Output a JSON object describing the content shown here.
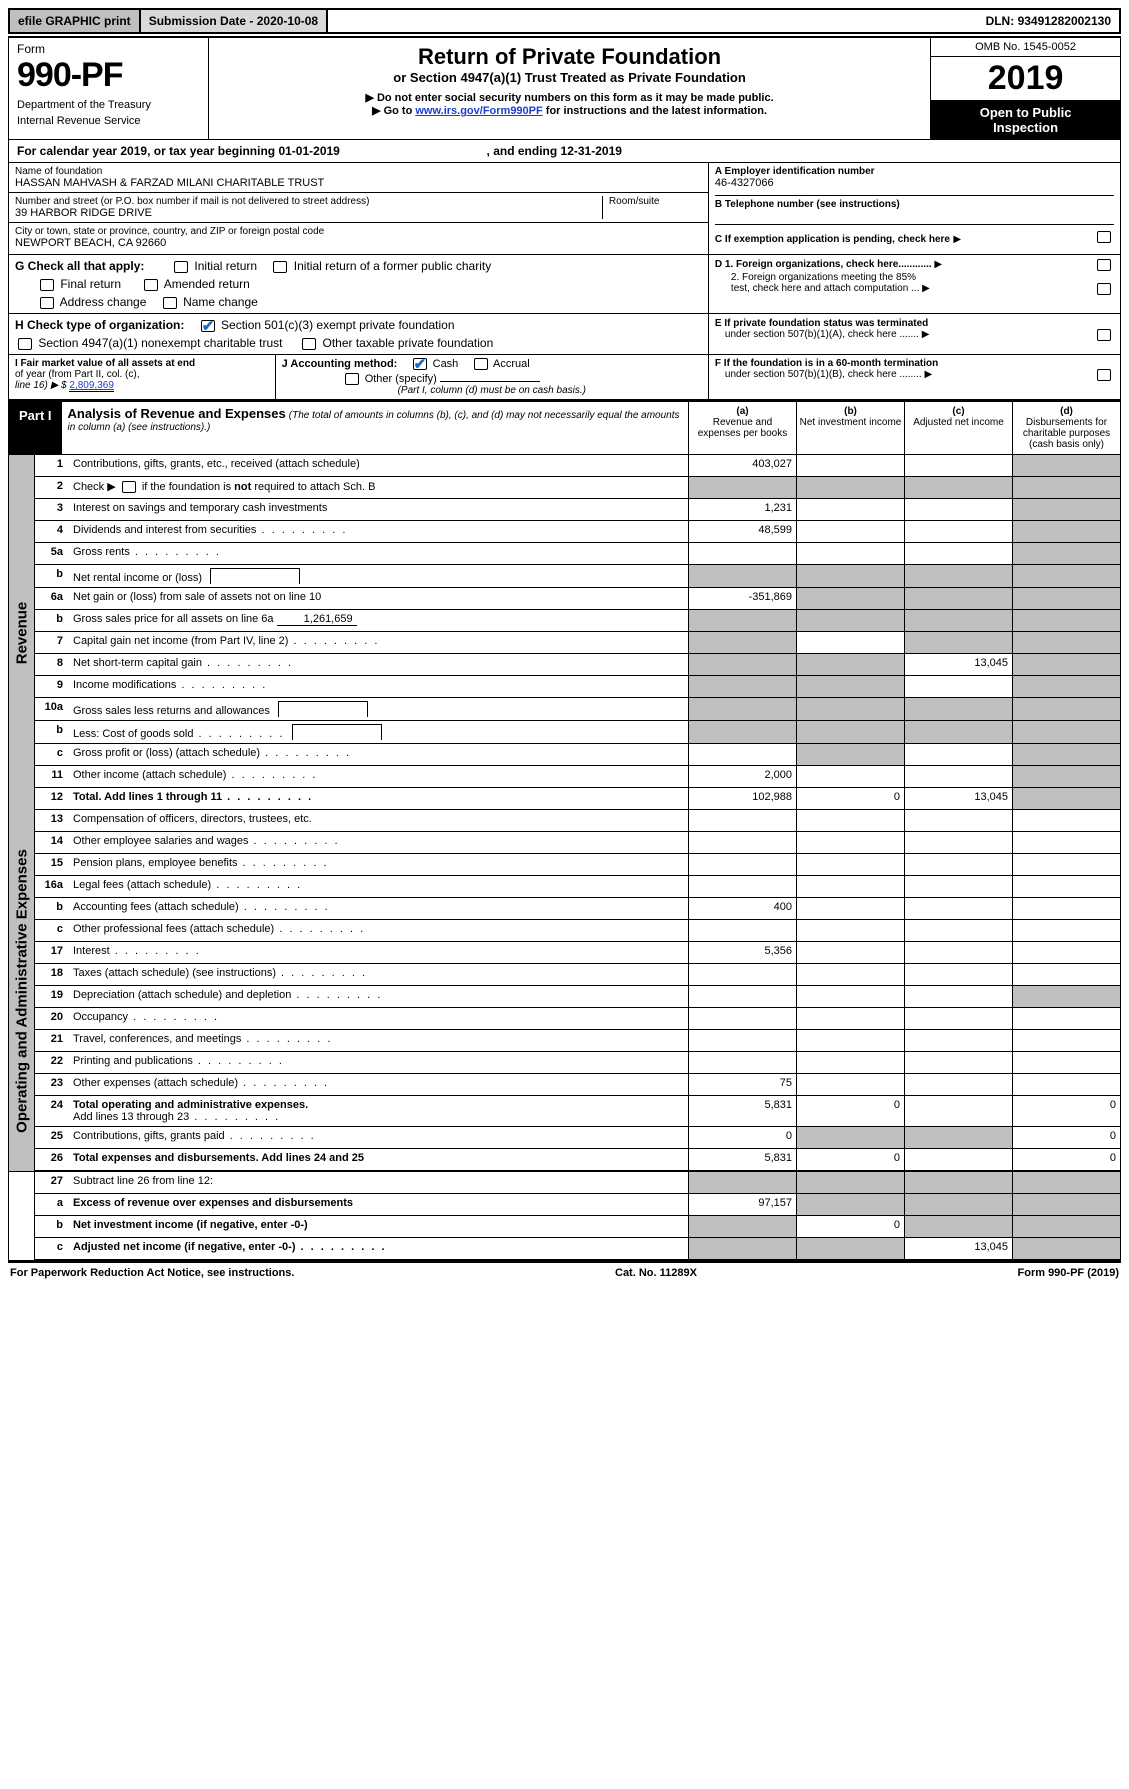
{
  "topbar": {
    "efile": "efile GRAPHIC print",
    "subdate_label": "Submission Date - ",
    "subdate": "2020-10-08",
    "dln_label": "DLN: ",
    "dln": "93491282002130"
  },
  "header": {
    "form_label": "Form",
    "form_no": "990-PF",
    "dept1": "Department of the Treasury",
    "dept2": "Internal Revenue Service",
    "title": "Return of Private Foundation",
    "subtitle": "or Section 4947(a)(1) Trust Treated as Private Foundation",
    "note1_pre": "▶ Do not enter social security numbers on this form as it may be made public.",
    "note2_pre": "▶ Go to ",
    "note2_link": "www.irs.gov/Form990PF",
    "note2_post": " for instructions and the latest information.",
    "omb": "OMB No. 1545-0052",
    "year": "2019",
    "inspect1": "Open to Public",
    "inspect2": "Inspection"
  },
  "cal": {
    "prefix": "For calendar year 2019, or tax year beginning ",
    "begin": "01-01-2019",
    "mid": ", and ending ",
    "end": "12-31-2019"
  },
  "entity": {
    "name_label": "Name of foundation",
    "name": "HASSAN MAHVASH & FARZAD MILANI CHARITABLE TRUST",
    "addr_label": "Number and street (or P.O. box number if mail is not delivered to street address)",
    "room_label": "Room/suite",
    "addr": "39 HARBOR RIDGE DRIVE",
    "city_label": "City or town, state or province, country, and ZIP or foreign postal code",
    "city": "NEWPORT BEACH, CA  92660",
    "a_label": "A Employer identification number",
    "ein": "46-4327066",
    "b_label": "B Telephone number (see instructions)",
    "c_label": "C If exemption application is pending, check here",
    "d1": "D 1. Foreign organizations, check here............",
    "d2a": "2. Foreign organizations meeting the 85%",
    "d2b": "test, check here and attach computation ...",
    "e1": "E  If private foundation status was terminated",
    "e2": "under section 507(b)(1)(A), check here .......",
    "f1": "F  If the foundation is in a 60-month termination",
    "f2": "under section 507(b)(1)(B), check here ........"
  },
  "g": {
    "label": "G Check all that apply:",
    "opts": [
      "Initial return",
      "Initial return of a former public charity",
      "Final return",
      "Amended return",
      "Address change",
      "Name change"
    ]
  },
  "h": {
    "label": "H Check type of organization:",
    "opt1": "Section 501(c)(3) exempt private foundation",
    "opt2": "Section 4947(a)(1) nonexempt charitable trust",
    "opt3": "Other taxable private foundation"
  },
  "i": {
    "label1": "I Fair market value of all assets at end",
    "label2": "of year (from Part II, col. (c),",
    "label3a": "line 16) ▶ $ ",
    "value": "2,809,369"
  },
  "j": {
    "label": "J Accounting method:",
    "cash": "Cash",
    "accrual": "Accrual",
    "other": "Other (specify)",
    "note": "(Part I, column (d) must be on cash basis.)"
  },
  "part1": {
    "tab": "Part I",
    "title": "Analysis of Revenue and Expenses",
    "subtitle": "(The total of amounts in columns (b), (c), and (d) may not necessarily equal the amounts in column (a) (see instructions).)",
    "col_a1": "(a)",
    "col_a2": "Revenue and expenses per books",
    "col_b1": "(b)",
    "col_b2": "Net investment income",
    "col_c1": "(c)",
    "col_c2": "Adjusted net income",
    "col_d1": "(d)",
    "col_d2": "Disbursements for charitable purposes (cash basis only)"
  },
  "sections": {
    "revenue": "Revenue",
    "expenses": "Operating and Administrative Expenses"
  },
  "rows": {
    "r1": {
      "n": "1",
      "d": "Contributions, gifts, grants, etc., received (attach schedule)",
      "a": "403,027"
    },
    "r2": {
      "n": "2",
      "d_pre": "Check ▶ ",
      "d_post": " if the foundation is ",
      "d_b": "not",
      "d_end": " required to attach Sch. B"
    },
    "r3": {
      "n": "3",
      "d": "Interest on savings and temporary cash investments",
      "a": "1,231"
    },
    "r4": {
      "n": "4",
      "d": "Dividends and interest from securities",
      "a": "48,599"
    },
    "r5a": {
      "n": "5a",
      "d": "Gross rents"
    },
    "r5b": {
      "n": "b",
      "d": "Net rental income or (loss)"
    },
    "r6a": {
      "n": "6a",
      "d": "Net gain or (loss) from sale of assets not on line 10",
      "a": "-351,869"
    },
    "r6b": {
      "n": "b",
      "d_pre": "Gross sales price for all assets on line 6a ",
      "val": "1,261,659"
    },
    "r7": {
      "n": "7",
      "d": "Capital gain net income (from Part IV, line 2)"
    },
    "r8": {
      "n": "8",
      "d": "Net short-term capital gain",
      "c": "13,045"
    },
    "r9": {
      "n": "9",
      "d": "Income modifications"
    },
    "r10a": {
      "n": "10a",
      "d": "Gross sales less returns and allowances"
    },
    "r10b": {
      "n": "b",
      "d": "Less: Cost of goods sold"
    },
    "r10c": {
      "n": "c",
      "d": "Gross profit or (loss) (attach schedule)"
    },
    "r11": {
      "n": "11",
      "d": "Other income (attach schedule)",
      "a": "2,000"
    },
    "r12": {
      "n": "12",
      "d": "Total. Add lines 1 through 11",
      "a": "102,988",
      "b": "0",
      "c": "13,045"
    },
    "r13": {
      "n": "13",
      "d": "Compensation of officers, directors, trustees, etc."
    },
    "r14": {
      "n": "14",
      "d": "Other employee salaries and wages"
    },
    "r15": {
      "n": "15",
      "d": "Pension plans, employee benefits"
    },
    "r16a": {
      "n": "16a",
      "d": "Legal fees (attach schedule)"
    },
    "r16b": {
      "n": "b",
      "d": "Accounting fees (attach schedule)",
      "a": "400"
    },
    "r16c": {
      "n": "c",
      "d": "Other professional fees (attach schedule)"
    },
    "r17": {
      "n": "17",
      "d": "Interest",
      "a": "5,356"
    },
    "r18": {
      "n": "18",
      "d": "Taxes (attach schedule) (see instructions)"
    },
    "r19": {
      "n": "19",
      "d": "Depreciation (attach schedule) and depletion"
    },
    "r20": {
      "n": "20",
      "d": "Occupancy"
    },
    "r21": {
      "n": "21",
      "d": "Travel, conferences, and meetings"
    },
    "r22": {
      "n": "22",
      "d": "Printing and publications"
    },
    "r23": {
      "n": "23",
      "d": "Other expenses (attach schedule)",
      "a": "75"
    },
    "r24": {
      "n": "24",
      "d": "Total operating and administrative expenses.",
      "d2": "Add lines 13 through 23",
      "a": "5,831",
      "b": "0",
      "dd": "0"
    },
    "r25": {
      "n": "25",
      "d": "Contributions, gifts, grants paid",
      "a": "0",
      "dd": "0"
    },
    "r26": {
      "n": "26",
      "d": "Total expenses and disbursements. Add lines 24 and 25",
      "a": "5,831",
      "b": "0",
      "dd": "0"
    },
    "r27": {
      "n": "27",
      "d": "Subtract line 26 from line 12:"
    },
    "r27a": {
      "n": "a",
      "d": "Excess of revenue over expenses and disbursements",
      "a": "97,157"
    },
    "r27b": {
      "n": "b",
      "d": "Net investment income (if negative, enter -0-)",
      "b": "0"
    },
    "r27c": {
      "n": "c",
      "d": "Adjusted net income (if negative, enter -0-)",
      "c": "13,045"
    }
  },
  "footer": {
    "left": "For Paperwork Reduction Act Notice, see instructions.",
    "mid": "Cat. No. 11289X",
    "right": "Form 990-PF (2019)"
  }
}
